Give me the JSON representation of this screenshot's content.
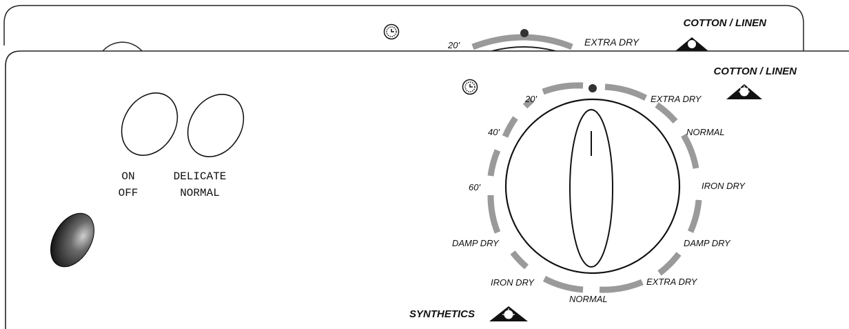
{
  "back_panel": {
    "cotton_linen": "COTTON / LINEN",
    "extra_dry": "EXTRA DRY",
    "min_20": "20'"
  },
  "switches": {
    "power_on": "ON",
    "power_off": "OFF",
    "mode_delicate": "DELICATE",
    "mode_normal": "NORMAL"
  },
  "dial": {
    "cotton_linen_title": "COTTON / LINEN",
    "synthetics_title": "SYNTHETICS",
    "timer_labels": [
      "20'",
      "40'",
      "60'"
    ],
    "cotton_labels": [
      "EXTRA DRY",
      "NORMAL",
      "IRON DRY",
      "DAMP DRY"
    ],
    "synthetic_labels": [
      "EXTRA DRY",
      "NORMAL",
      "IRON DRY",
      "DAMP DRY"
    ]
  },
  "colors": {
    "arc_gray": "#9a9a9a",
    "ink": "#111111"
  },
  "icons": [
    "timer-icon",
    "sun-icon",
    "indicator-light-icon"
  ]
}
